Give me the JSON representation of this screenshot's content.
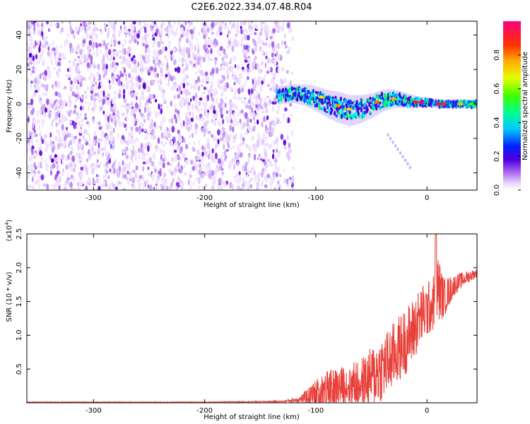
{
  "title": "C2E6.2022.334.07.48.R04",
  "chart_data": [
    {
      "type": "heatmap",
      "title": "C2E6.2022.334.07.48.R04",
      "xlabel": "Height of straight line (km)",
      "ylabel": "Frequency (Hz)",
      "xlim": [
        -360,
        45
      ],
      "ylim": [
        -50,
        48
      ],
      "xticks": [
        -300,
        -200,
        -100,
        0
      ],
      "yticks": [
        40,
        20,
        0,
        -20,
        -40
      ],
      "colorbar": {
        "label": "Normalized spectral amplitude",
        "range": [
          0.0,
          1.0
        ],
        "ticks": [
          "0.0",
          "0.2",
          "0.4",
          "0.6",
          "0.8"
        ],
        "colors": [
          "#ffffff",
          "#d8b8f8",
          "#8a2be2",
          "#0000ff",
          "#00ffff",
          "#00ff00",
          "#ffff00",
          "#ff8000",
          "#ff0000",
          "#ff0080"
        ]
      },
      "noise_region_x": [
        -360,
        -120
      ],
      "signal_track": {
        "x": [
          -135,
          -120,
          -110,
          -100,
          -90,
          -80,
          -70,
          -60,
          -50,
          -40,
          -30,
          -20,
          -10,
          0,
          10,
          20,
          30,
          45
        ],
        "freq_hz": [
          5,
          6,
          5,
          3,
          0,
          -2,
          -4,
          -3,
          -1,
          2,
          3,
          2,
          1,
          1,
          0,
          0,
          0,
          0
        ],
        "width_hz": [
          6,
          6,
          7,
          8,
          9,
          10,
          10,
          9,
          8,
          7,
          6,
          5,
          4,
          3,
          3,
          3,
          3,
          3
        ]
      },
      "grid": false
    },
    {
      "type": "line",
      "xlabel": "Height of straight line (km)",
      "ylabel": "SNR (10 * v/v)",
      "ylabel_exponent": "(x10^4)",
      "xlim": [
        -360,
        45
      ],
      "ylim": [
        0,
        2.5
      ],
      "xticks": [
        -300,
        -200,
        -100,
        0
      ],
      "yticks": [
        "0.5",
        "1.0",
        "1.5",
        "2.0",
        "2.5"
      ],
      "color": "#e8403a",
      "series": [
        {
          "x": [
            -360,
            -300,
            -200,
            -130,
            -115,
            -105,
            -95,
            -85,
            -75,
            -65,
            -55,
            -45,
            -35,
            -25,
            -15,
            -5,
            5,
            10,
            15,
            25,
            35,
            45
          ],
          "values": [
            0.01,
            0.01,
            0.01,
            0.02,
            0.05,
            0.1,
            0.15,
            0.2,
            0.25,
            0.28,
            0.32,
            0.45,
            0.6,
            0.8,
            1.0,
            1.3,
            1.45,
            1.7,
            1.55,
            1.75,
            1.85,
            1.92
          ],
          "spread": [
            0.005,
            0.005,
            0.005,
            0.01,
            0.05,
            0.15,
            0.3,
            0.3,
            0.3,
            0.35,
            0.4,
            0.5,
            0.5,
            0.5,
            0.5,
            0.45,
            0.4,
            0.5,
            0.3,
            0.15,
            0.1,
            0.06
          ]
        }
      ]
    }
  ]
}
